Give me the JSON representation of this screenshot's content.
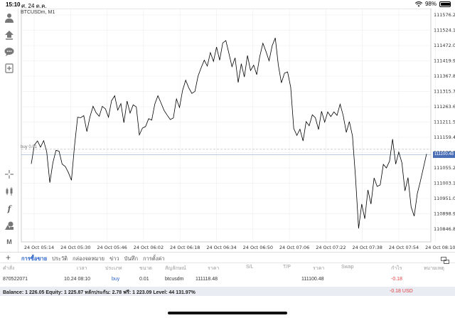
{
  "status_bar": {
    "time": "15:10",
    "date": "ศ. 24 ต.ค.",
    "battery": "98%",
    "battery_level": 0.98
  },
  "chart": {
    "symbol": "BTCUSDm, M1",
    "buy_label": "buy 0.01",
    "current_price": "111100.48",
    "line_color": "#000000",
    "grid_color": "#e9e9e9",
    "price_tag_color": "#4a6eb5"
  },
  "chart_data": {
    "type": "line",
    "title": "BTCUSDm, M1",
    "y_ticks": [
      "111576.20",
      "111524.10",
      "111472.00",
      "111419.90",
      "111367.80",
      "111315.70",
      "111263.60",
      "111211.50",
      "111159.40",
      "111107.30",
      "111055.20",
      "111003.10",
      "110951.00",
      "110898.90",
      "110846.80"
    ],
    "x_ticks": [
      "24 Oct 05:14",
      "24 Oct 05:30",
      "24 Oct 05:46",
      "24 Oct 06:02",
      "24 Oct 06:18",
      "24 Oct 06:34",
      "24 Oct 06:50",
      "24 Oct 07:06",
      "24 Oct 07:22",
      "24 Oct 07:38",
      "24 Oct 07:54",
      "24 Oct 08:10"
    ],
    "ylim": [
      110820,
      111600
    ],
    "buy_level": 111118.48,
    "current_price": 111100.48,
    "values": [
      111069,
      111133,
      111147,
      111126,
      111148,
      111110,
      111005,
      111073,
      111115,
      111112,
      111068,
      111060,
      111040,
      111013,
      111130,
      111228,
      111226,
      111233,
      111179,
      111229,
      111265,
      111243,
      111231,
      111265,
      111256,
      111228,
      111284,
      111301,
      111252,
      111274,
      111209,
      111283,
      111242,
      111270,
      111263,
      111168,
      111191,
      111196,
      111223,
      111218,
      111273,
      111301,
      111277,
      111251,
      111235,
      111220,
      111225,
      111290,
      111261,
      111319,
      111354,
      111328,
      111309,
      111316,
      111368,
      111396,
      111422,
      111402,
      111448,
      111418,
      111467,
      111422,
      111481,
      111489,
      111445,
      111400,
      111430,
      111346,
      111410,
      111365,
      111438,
      111387,
      111405,
      111373,
      111435,
      111480,
      111452,
      111420,
      111471,
      111498,
      111405,
      111345,
      111378,
      111382,
      111330,
      111189,
      111166,
      111187,
      111147,
      111213,
      111199,
      111236,
      111226,
      111186,
      111248,
      111211,
      111246,
      111230,
      111246,
      111234,
      111272,
      111234,
      111176,
      111213,
      111164,
      111022,
      110849,
      110932,
      110882,
      110980,
      110932,
      111021,
      110992,
      110997,
      111067,
      111055,
      111078,
      111153,
      111068,
      111109,
      111073,
      110977,
      111022,
      110922,
      110891,
      110968,
      111010,
      111057,
      111103
    ]
  },
  "tabs": [
    "การซื้อขาย",
    "ประวัติ",
    "กล่องจดหมาย",
    "ข่าว",
    "บันทึก",
    "การตั้งค่า"
  ],
  "table": {
    "headers": [
      "คำสั่ง",
      "เวลา",
      "ประเภท",
      "ขนาด",
      "สัญลักษณ์",
      "ราคา",
      "S/L",
      "T/P",
      "ราคา",
      "Swap",
      "กำไร",
      "หมายเหตุ"
    ],
    "row": {
      "order": "870522071",
      "time": "10.24 08:10",
      "type": "buy",
      "size": "0.01",
      "symbol": "btcusdm",
      "open_price": "111118.48",
      "current_price": "111100.48",
      "profit": "-0.18"
    }
  },
  "balance": {
    "text": "Balance: 1 226.05 Equity: 1 225.87 หลักประกัน: 2.78 ฟรี: 1 223.09 Level: 44 131.97%",
    "profit": "-0.18  USD"
  }
}
